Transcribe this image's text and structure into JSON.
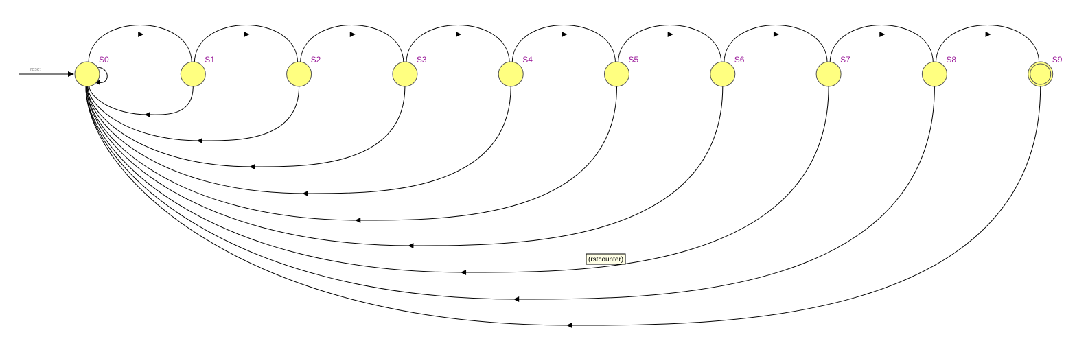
{
  "diagram": {
    "type": "state-machine",
    "initial_state": "S0",
    "accept_state": "S9",
    "reset_label": "reset",
    "tooltip_label": "(rstcounter)",
    "colors": {
      "state_fill": "#ffff80",
      "state_label": "#9b1c9b",
      "edge": "#000000"
    },
    "states": [
      "S0",
      "S1",
      "S2",
      "S3",
      "S4",
      "S5",
      "S6",
      "S7",
      "S8",
      "S9"
    ],
    "forward_transitions": [
      {
        "from": "S0",
        "to": "S1"
      },
      {
        "from": "S1",
        "to": "S2"
      },
      {
        "from": "S2",
        "to": "S3"
      },
      {
        "from": "S3",
        "to": "S4"
      },
      {
        "from": "S4",
        "to": "S5"
      },
      {
        "from": "S5",
        "to": "S6"
      },
      {
        "from": "S6",
        "to": "S7"
      },
      {
        "from": "S7",
        "to": "S8"
      },
      {
        "from": "S8",
        "to": "S9"
      }
    ],
    "back_transitions": [
      {
        "from": "S1",
        "to": "S0"
      },
      {
        "from": "S2",
        "to": "S0"
      },
      {
        "from": "S3",
        "to": "S0"
      },
      {
        "from": "S4",
        "to": "S0"
      },
      {
        "from": "S5",
        "to": "S0"
      },
      {
        "from": "S6",
        "to": "S0"
      },
      {
        "from": "S7",
        "to": "S0"
      },
      {
        "from": "S8",
        "to": "S0"
      },
      {
        "from": "S9",
        "to": "S0"
      }
    ],
    "self_loops": [
      {
        "state": "S0"
      }
    ]
  }
}
